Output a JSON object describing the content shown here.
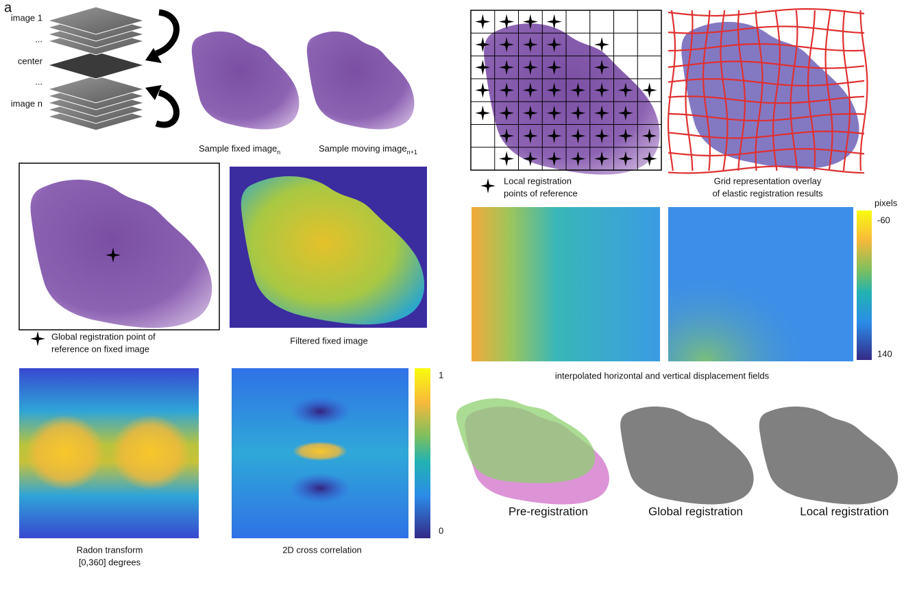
{
  "panel_label": "a",
  "stack": {
    "labels": [
      "image 1",
      "...",
      "center",
      "...",
      "image n"
    ]
  },
  "samples": {
    "fixed": {
      "label": "Sample fixed image",
      "subscript": "n"
    },
    "moving": {
      "label": "Sample moving image",
      "subscript": "n+1"
    }
  },
  "global_point": {
    "caption": [
      "Global registration point of",
      "reference on fixed image"
    ]
  },
  "filtered": {
    "caption": "Filtered fixed image"
  },
  "radon": {
    "caption": [
      "Radon transform",
      "[0,360] degrees"
    ]
  },
  "cross_correlation": {
    "caption": "2D cross correlation",
    "colorbar": {
      "max": 1,
      "min": 0
    }
  },
  "local_points": {
    "caption": [
      "Local registration",
      "points of reference"
    ]
  },
  "grid_overlay": {
    "caption": [
      "Grid representation overlay",
      "of elastic registration results"
    ]
  },
  "displacement": {
    "caption": "interpolated horizontal and vertical displacement fields",
    "colorbar": {
      "title": "pixels",
      "top": -60,
      "bottom": 140
    }
  },
  "results": {
    "captions": [
      "Pre-registration",
      "Global registration",
      "Local registration"
    ]
  }
}
